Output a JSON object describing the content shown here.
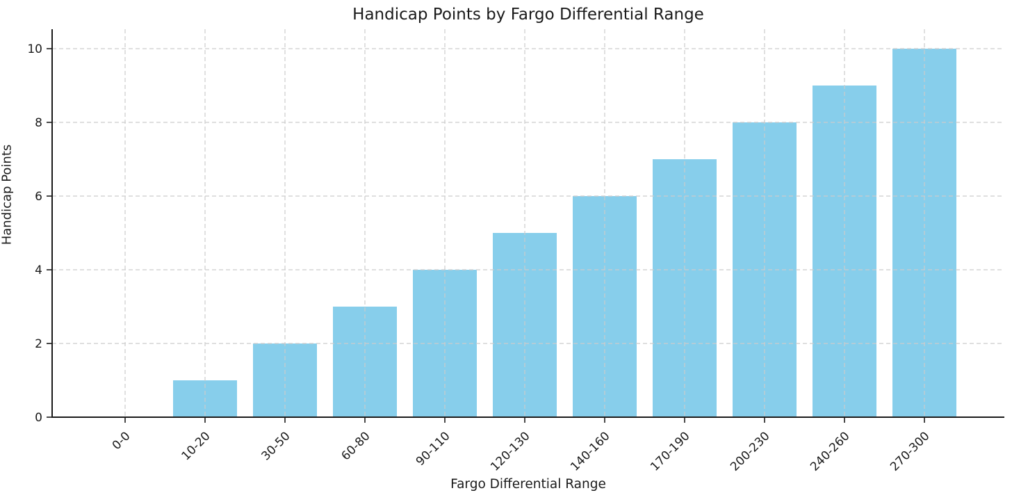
{
  "figure": {
    "background_color": "#ffffff",
    "text_color": "#1a1a1a"
  },
  "chart_data": {
    "type": "bar",
    "title": "Handicap Points by Fargo Differential Range",
    "xlabel": "Fargo Differential Range",
    "ylabel": "Handicap Points",
    "categories": [
      "0-0",
      "10-20",
      "30-50",
      "60-80",
      "90-110",
      "120-130",
      "140-160",
      "170-190",
      "200-230",
      "240-260",
      "270-300"
    ],
    "values": [
      0,
      1,
      2,
      3,
      4,
      5,
      6,
      7,
      8,
      9,
      10
    ],
    "yticks": [
      0,
      2,
      4,
      6,
      8,
      10
    ],
    "ylim": [
      0,
      10.5
    ],
    "bar_color": "#87CEEB",
    "grid": true,
    "grid_color": "#cccccc",
    "grid_style": "dashed",
    "spine_color": "#1a1a1a",
    "x_tick_rotation": 45,
    "legend_position": "none"
  }
}
